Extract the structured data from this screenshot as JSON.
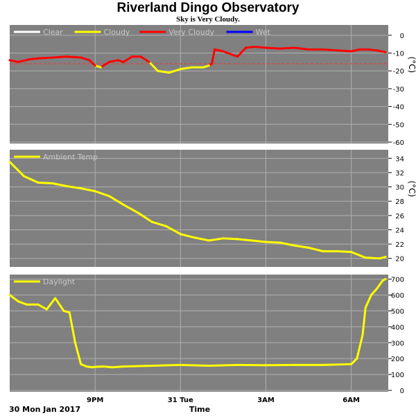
{
  "title": "Riverland Dingo Observatory",
  "subtitle": "Sky is Very Cloudy.",
  "colors": {
    "panel_bg": "#808080",
    "grid": "#b0b0b0",
    "tick": "#000000",
    "clear": "#ffffff",
    "cloudy": "#ffff00",
    "very_cloudy": "#ff0000",
    "wet": "#0000ff",
    "legend_text": "#c8c8c8"
  },
  "chart_data": [
    {
      "type": "line",
      "name": "sky",
      "ylabel": "(°C)",
      "ylim": [
        -60,
        5
      ],
      "yticks": [
        "0",
        "-10",
        "-20",
        "-30",
        "-40",
        "-50",
        "-60"
      ],
      "threshold": -16,
      "legend": [
        {
          "label": "Clear",
          "color": "#ffffff"
        },
        {
          "label": "Cloudy",
          "color": "#ffff00"
        },
        {
          "label": "Very Cloudy",
          "color": "#ff0000"
        },
        {
          "label": "Wet",
          "color": "#0000ff"
        }
      ],
      "x": [
        18.0,
        18.3,
        18.7,
        19.0,
        19.5,
        20.0,
        20.5,
        20.8,
        21.0,
        21.2,
        21.5,
        21.8,
        22.0,
        22.3,
        22.6,
        22.9,
        23.2,
        23.6,
        24.0,
        24.4,
        24.8,
        25.0,
        25.1,
        25.2,
        25.5,
        26.0,
        26.3,
        26.6,
        27.0,
        27.5,
        28.0,
        28.5,
        29.0,
        29.5,
        30.0,
        30.3,
        30.6,
        30.9,
        31.2
      ],
      "y": [
        -14,
        -15,
        -13.5,
        -13,
        -12.5,
        -12,
        -12.5,
        -14,
        -17,
        -18,
        -15,
        -14,
        -15,
        -12,
        -12,
        -15,
        -20,
        -21,
        -19,
        -18,
        -18,
        -17,
        -16,
        -8,
        -9,
        -12,
        -7,
        -6.5,
        -7,
        -7.5,
        -7,
        -8,
        -8,
        -8.5,
        -9,
        -8,
        -8,
        -8.5,
        -9.5
      ],
      "series_colors": [
        "#ff0000",
        "#ff0000",
        "#ff0000",
        "#ff0000",
        "#ff0000",
        "#ff0000",
        "#ff0000",
        "#ff0000",
        "#ff0000",
        "#ffff00",
        "#ff0000",
        "#ff0000",
        "#ff0000",
        "#ff0000",
        "#ff0000",
        "#ff0000",
        "#ffff00",
        "#ffff00",
        "#ffff00",
        "#ffff00",
        "#ffff00",
        "#ffff00",
        "#ff0000",
        "#ff0000",
        "#ff0000",
        "#ff0000",
        "#ff0000",
        "#ff0000",
        "#ff0000",
        "#ff0000",
        "#ff0000",
        "#ff0000",
        "#ff0000",
        "#ff0000",
        "#ff0000",
        "#ff0000",
        "#ff0000",
        "#ff0000",
        "#ff0000"
      ]
    },
    {
      "type": "line",
      "name": "ambient",
      "ylabel": "(°C)",
      "ylim": [
        19,
        35
      ],
      "yticks": [
        "34",
        "32",
        "30",
        "28",
        "26",
        "24",
        "22",
        "20"
      ],
      "legend": [
        {
          "label": "Ambient Temp",
          "color": "#ffff00"
        }
      ],
      "x": [
        18.0,
        18.5,
        19.0,
        19.5,
        20.0,
        20.5,
        21.0,
        21.5,
        22.0,
        22.5,
        23.0,
        23.5,
        24.0,
        24.5,
        25.0,
        25.5,
        26.0,
        26.5,
        27.0,
        27.5,
        28.0,
        28.5,
        29.0,
        29.5,
        30.0,
        30.5,
        31.0,
        31.2
      ],
      "y": [
        33.5,
        31.5,
        30.6,
        30.5,
        30.1,
        29.8,
        29.4,
        28.7,
        27.5,
        26.4,
        25.1,
        24.5,
        23.4,
        22.9,
        22.5,
        22.8,
        22.7,
        22.5,
        22.3,
        22.2,
        21.8,
        21.5,
        21.0,
        21.0,
        20.9,
        20.1,
        20.0,
        20.2
      ],
      "series_colors": [
        "#ffff00"
      ]
    },
    {
      "type": "line",
      "name": "daylight",
      "ylim": [
        0,
        720
      ],
      "yticks": [
        "700",
        "600",
        "500",
        "400",
        "300",
        "200",
        "100",
        "0"
      ],
      "legend": [
        {
          "label": "Daylight",
          "color": "#ffff00"
        }
      ],
      "x": [
        18.0,
        18.3,
        18.6,
        19.0,
        19.3,
        19.6,
        19.9,
        20.1,
        20.3,
        20.5,
        20.7,
        20.9,
        21.0,
        21.3,
        21.6,
        22.0,
        23.0,
        24.0,
        25.0,
        26.0,
        27.0,
        28.0,
        29.0,
        30.0,
        30.2,
        30.4,
        30.5,
        30.7,
        30.9,
        31.1,
        31.2
      ],
      "y": [
        600,
        560,
        540,
        540,
        510,
        580,
        500,
        490,
        300,
        165,
        150,
        145,
        148,
        150,
        145,
        150,
        155,
        160,
        155,
        160,
        158,
        160,
        160,
        165,
        200,
        350,
        520,
        600,
        640,
        690,
        700
      ],
      "series_colors": [
        "#ffff00"
      ]
    }
  ],
  "x_axis": {
    "start_label": "30 Mon Jan 2017",
    "title": "Time",
    "ticks": [
      {
        "x": 21,
        "label": "9PM"
      },
      {
        "x": 24,
        "label": "31 Tue"
      },
      {
        "x": 27,
        "label": "3AM"
      },
      {
        "x": 30,
        "label": "6AM"
      }
    ]
  }
}
